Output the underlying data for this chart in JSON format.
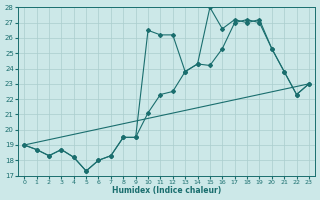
{
  "xlabel": "Humidex (Indice chaleur)",
  "bg_color": "#cce8e8",
  "line_color": "#1a6e6e",
  "grid_color": "#aacece",
  "ylim": [
    17,
    28
  ],
  "xlim": [
    -0.5,
    23.5
  ],
  "yticks": [
    17,
    18,
    19,
    20,
    21,
    22,
    23,
    24,
    25,
    26,
    27,
    28
  ],
  "xticks": [
    0,
    1,
    2,
    3,
    4,
    5,
    6,
    7,
    8,
    9,
    10,
    11,
    12,
    13,
    14,
    15,
    16,
    17,
    18,
    19,
    20,
    21,
    22,
    23
  ],
  "line1_x": [
    0,
    1,
    2,
    3,
    4,
    5,
    6,
    7,
    8,
    9,
    10,
    11,
    12,
    13,
    14,
    15,
    16,
    17,
    18,
    19,
    20,
    21,
    22,
    23
  ],
  "line1_y": [
    19.0,
    18.7,
    18.3,
    18.7,
    18.2,
    17.3,
    18.0,
    18.3,
    19.5,
    19.5,
    26.5,
    26.2,
    26.2,
    23.8,
    24.3,
    28.0,
    26.6,
    27.2,
    27.0,
    27.2,
    25.3,
    23.8,
    22.3,
    23.0
  ],
  "line2_x": [
    0,
    1,
    2,
    3,
    4,
    5,
    6,
    7,
    8,
    9,
    10,
    11,
    12,
    13,
    14,
    15,
    16,
    17,
    18,
    19,
    20,
    21,
    22,
    23
  ],
  "line2_y": [
    19.0,
    18.7,
    18.3,
    18.7,
    18.2,
    17.3,
    18.0,
    18.3,
    19.5,
    19.5,
    21.1,
    22.3,
    22.5,
    23.8,
    24.3,
    24.2,
    25.3,
    27.0,
    27.2,
    27.0,
    25.3,
    23.8,
    22.3,
    23.0
  ],
  "line3_x": [
    0,
    23
  ],
  "line3_y": [
    19.0,
    23.0
  ]
}
